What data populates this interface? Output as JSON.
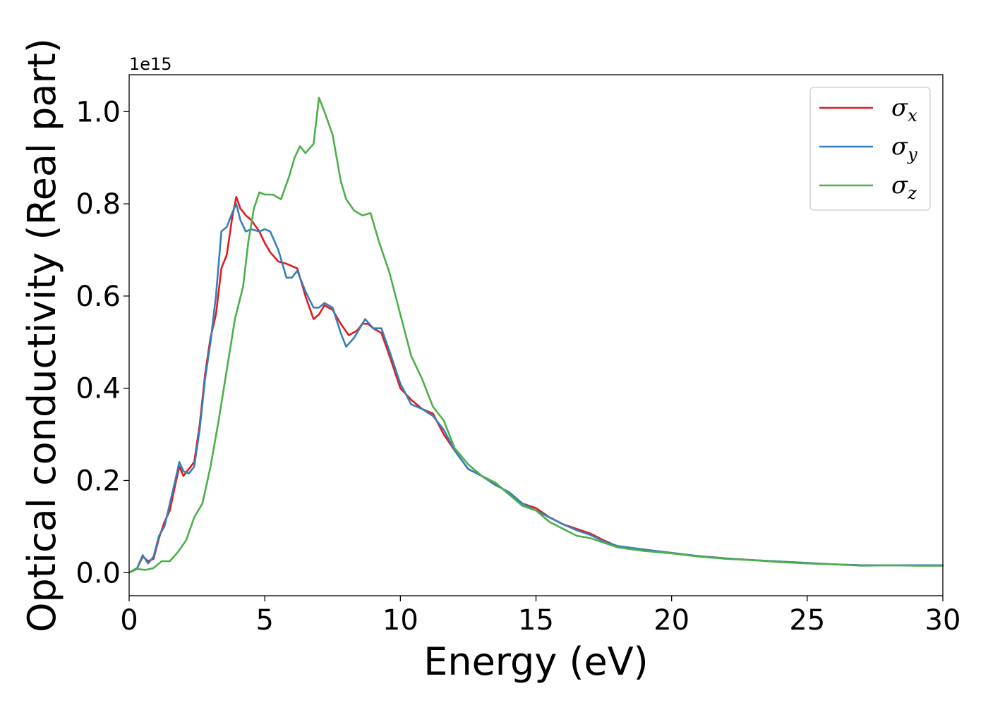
{
  "chart_data": {
    "type": "line",
    "title": "",
    "xlabel": "Energy (eV)",
    "ylabel": "Optical conductivity (Real part)",
    "y_offset_label": "1e15",
    "xlim": [
      0,
      30
    ],
    "ylim": [
      -0.05,
      1.08
    ],
    "x_ticks": [
      0,
      5,
      10,
      15,
      20,
      25,
      30
    ],
    "x_tick_labels": [
      "0",
      "5",
      "10",
      "15",
      "20",
      "25",
      "30"
    ],
    "y_ticks": [
      0.0,
      0.2,
      0.4,
      0.6,
      0.8,
      1.0
    ],
    "y_tick_labels": [
      "0.0",
      "0.2",
      "0.4",
      "0.6",
      "0.8",
      "1.0"
    ],
    "grid": false,
    "legend_position": "top-right",
    "series": [
      {
        "name": "σx",
        "legend_base": "σ",
        "legend_sub": "x",
        "color": "#e41a1c",
        "points": [
          [
            0,
            0
          ],
          [
            0.3,
            0.01
          ],
          [
            0.5,
            0.035
          ],
          [
            0.7,
            0.025
          ],
          [
            0.9,
            0.03
          ],
          [
            1.1,
            0.075
          ],
          [
            1.3,
            0.11
          ],
          [
            1.5,
            0.135
          ],
          [
            1.7,
            0.19
          ],
          [
            1.85,
            0.23
          ],
          [
            2.0,
            0.21
          ],
          [
            2.2,
            0.225
          ],
          [
            2.4,
            0.24
          ],
          [
            2.6,
            0.32
          ],
          [
            2.8,
            0.43
          ],
          [
            3.0,
            0.51
          ],
          [
            3.2,
            0.56
          ],
          [
            3.4,
            0.66
          ],
          [
            3.6,
            0.69
          ],
          [
            3.8,
            0.77
          ],
          [
            3.95,
            0.815
          ],
          [
            4.1,
            0.79
          ],
          [
            4.3,
            0.775
          ],
          [
            4.5,
            0.765
          ],
          [
            4.8,
            0.74
          ],
          [
            5.0,
            0.715
          ],
          [
            5.2,
            0.695
          ],
          [
            5.5,
            0.675
          ],
          [
            5.8,
            0.67
          ],
          [
            6.0,
            0.665
          ],
          [
            6.2,
            0.66
          ],
          [
            6.5,
            0.6
          ],
          [
            6.8,
            0.55
          ],
          [
            7.0,
            0.56
          ],
          [
            7.2,
            0.58
          ],
          [
            7.5,
            0.57
          ],
          [
            7.8,
            0.54
          ],
          [
            8.1,
            0.515
          ],
          [
            8.4,
            0.525
          ],
          [
            8.6,
            0.54
          ],
          [
            8.8,
            0.54
          ],
          [
            9.0,
            0.53
          ],
          [
            9.3,
            0.52
          ],
          [
            9.6,
            0.47
          ],
          [
            10.0,
            0.4
          ],
          [
            10.4,
            0.375
          ],
          [
            10.8,
            0.355
          ],
          [
            11.2,
            0.345
          ],
          [
            11.6,
            0.3
          ],
          [
            12.0,
            0.265
          ],
          [
            12.5,
            0.225
          ],
          [
            13.0,
            0.21
          ],
          [
            13.5,
            0.195
          ],
          [
            14.0,
            0.17
          ],
          [
            14.5,
            0.15
          ],
          [
            15.0,
            0.14
          ],
          [
            15.5,
            0.12
          ],
          [
            16.0,
            0.105
          ],
          [
            16.5,
            0.095
          ],
          [
            17.0,
            0.085
          ],
          [
            17.5,
            0.07
          ],
          [
            18.0,
            0.057
          ],
          [
            19.0,
            0.05
          ],
          [
            20.0,
            0.042
          ],
          [
            21.0,
            0.036
          ],
          [
            22.0,
            0.031
          ],
          [
            23.0,
            0.027
          ],
          [
            24.0,
            0.024
          ],
          [
            25.0,
            0.021
          ],
          [
            26.0,
            0.018
          ],
          [
            27.0,
            0.016
          ],
          [
            28.0,
            0.016
          ],
          [
            29.0,
            0.016
          ],
          [
            30.0,
            0.016
          ]
        ]
      },
      {
        "name": "σy",
        "legend_base": "σ",
        "legend_sub": "y",
        "color": "#377eb8",
        "points": [
          [
            0,
            0
          ],
          [
            0.3,
            0.01
          ],
          [
            0.5,
            0.038
          ],
          [
            0.7,
            0.02
          ],
          [
            0.9,
            0.035
          ],
          [
            1.1,
            0.08
          ],
          [
            1.3,
            0.1
          ],
          [
            1.5,
            0.15
          ],
          [
            1.7,
            0.2
          ],
          [
            1.85,
            0.24
          ],
          [
            2.0,
            0.22
          ],
          [
            2.2,
            0.215
          ],
          [
            2.4,
            0.23
          ],
          [
            2.6,
            0.31
          ],
          [
            2.8,
            0.42
          ],
          [
            3.0,
            0.5
          ],
          [
            3.2,
            0.6
          ],
          [
            3.4,
            0.74
          ],
          [
            3.6,
            0.75
          ],
          [
            3.8,
            0.78
          ],
          [
            3.95,
            0.8
          ],
          [
            4.1,
            0.765
          ],
          [
            4.3,
            0.74
          ],
          [
            4.5,
            0.745
          ],
          [
            4.8,
            0.74
          ],
          [
            5.0,
            0.745
          ],
          [
            5.2,
            0.74
          ],
          [
            5.5,
            0.7
          ],
          [
            5.8,
            0.64
          ],
          [
            6.0,
            0.64
          ],
          [
            6.2,
            0.655
          ],
          [
            6.5,
            0.61
          ],
          [
            6.8,
            0.575
          ],
          [
            7.0,
            0.575
          ],
          [
            7.2,
            0.585
          ],
          [
            7.5,
            0.575
          ],
          [
            7.8,
            0.52
          ],
          [
            8.0,
            0.49
          ],
          [
            8.3,
            0.51
          ],
          [
            8.5,
            0.53
          ],
          [
            8.7,
            0.55
          ],
          [
            9.0,
            0.53
          ],
          [
            9.3,
            0.53
          ],
          [
            9.6,
            0.48
          ],
          [
            10.0,
            0.41
          ],
          [
            10.4,
            0.365
          ],
          [
            10.8,
            0.355
          ],
          [
            11.2,
            0.34
          ],
          [
            11.6,
            0.31
          ],
          [
            12.0,
            0.265
          ],
          [
            12.5,
            0.225
          ],
          [
            13.0,
            0.21
          ],
          [
            13.5,
            0.19
          ],
          [
            14.0,
            0.175
          ],
          [
            14.5,
            0.15
          ],
          [
            15.0,
            0.135
          ],
          [
            15.5,
            0.12
          ],
          [
            16.0,
            0.105
          ],
          [
            16.5,
            0.092
          ],
          [
            17.0,
            0.082
          ],
          [
            17.5,
            0.068
          ],
          [
            18.0,
            0.058
          ],
          [
            19.0,
            0.05
          ],
          [
            20.0,
            0.043
          ],
          [
            21.0,
            0.036
          ],
          [
            22.0,
            0.031
          ],
          [
            23.0,
            0.027
          ],
          [
            24.0,
            0.024
          ],
          [
            25.0,
            0.021
          ],
          [
            26.0,
            0.018
          ],
          [
            27.0,
            0.016
          ],
          [
            28.0,
            0.016
          ],
          [
            29.0,
            0.016
          ],
          [
            30.0,
            0.016
          ]
        ]
      },
      {
        "name": "σz",
        "legend_base": "σ",
        "legend_sub": "z",
        "color": "#4daf4a",
        "points": [
          [
            0,
            0
          ],
          [
            0.3,
            0.008
          ],
          [
            0.6,
            0.006
          ],
          [
            0.9,
            0.01
          ],
          [
            1.2,
            0.025
          ],
          [
            1.5,
            0.025
          ],
          [
            1.8,
            0.045
          ],
          [
            2.1,
            0.07
          ],
          [
            2.4,
            0.12
          ],
          [
            2.7,
            0.15
          ],
          [
            3.0,
            0.23
          ],
          [
            3.3,
            0.33
          ],
          [
            3.6,
            0.44
          ],
          [
            3.9,
            0.55
          ],
          [
            4.2,
            0.62
          ],
          [
            4.4,
            0.72
          ],
          [
            4.6,
            0.79
          ],
          [
            4.8,
            0.825
          ],
          [
            5.0,
            0.82
          ],
          [
            5.3,
            0.82
          ],
          [
            5.6,
            0.81
          ],
          [
            5.9,
            0.86
          ],
          [
            6.1,
            0.9
          ],
          [
            6.3,
            0.925
          ],
          [
            6.5,
            0.91
          ],
          [
            6.8,
            0.93
          ],
          [
            7.0,
            1.03
          ],
          [
            7.2,
            1.0
          ],
          [
            7.5,
            0.95
          ],
          [
            7.8,
            0.85
          ],
          [
            8.0,
            0.81
          ],
          [
            8.3,
            0.785
          ],
          [
            8.6,
            0.775
          ],
          [
            8.9,
            0.78
          ],
          [
            9.2,
            0.72
          ],
          [
            9.6,
            0.65
          ],
          [
            10.0,
            0.56
          ],
          [
            10.4,
            0.47
          ],
          [
            10.8,
            0.42
          ],
          [
            11.2,
            0.36
          ],
          [
            11.6,
            0.33
          ],
          [
            12.0,
            0.27
          ],
          [
            12.5,
            0.235
          ],
          [
            13.0,
            0.21
          ],
          [
            13.5,
            0.195
          ],
          [
            14.0,
            0.17
          ],
          [
            14.5,
            0.145
          ],
          [
            15.0,
            0.135
          ],
          [
            15.5,
            0.11
          ],
          [
            16.0,
            0.095
          ],
          [
            16.5,
            0.08
          ],
          [
            17.0,
            0.075
          ],
          [
            17.5,
            0.065
          ],
          [
            18.0,
            0.055
          ],
          [
            19.0,
            0.047
          ],
          [
            20.0,
            0.042
          ],
          [
            21.0,
            0.035
          ],
          [
            22.0,
            0.03
          ],
          [
            23.0,
            0.027
          ],
          [
            24.0,
            0.023
          ],
          [
            25.0,
            0.02
          ],
          [
            26.0,
            0.018
          ],
          [
            27.0,
            0.015
          ],
          [
            28.0,
            0.016
          ],
          [
            29.0,
            0.015
          ],
          [
            30.0,
            0.015
          ]
        ]
      }
    ]
  }
}
